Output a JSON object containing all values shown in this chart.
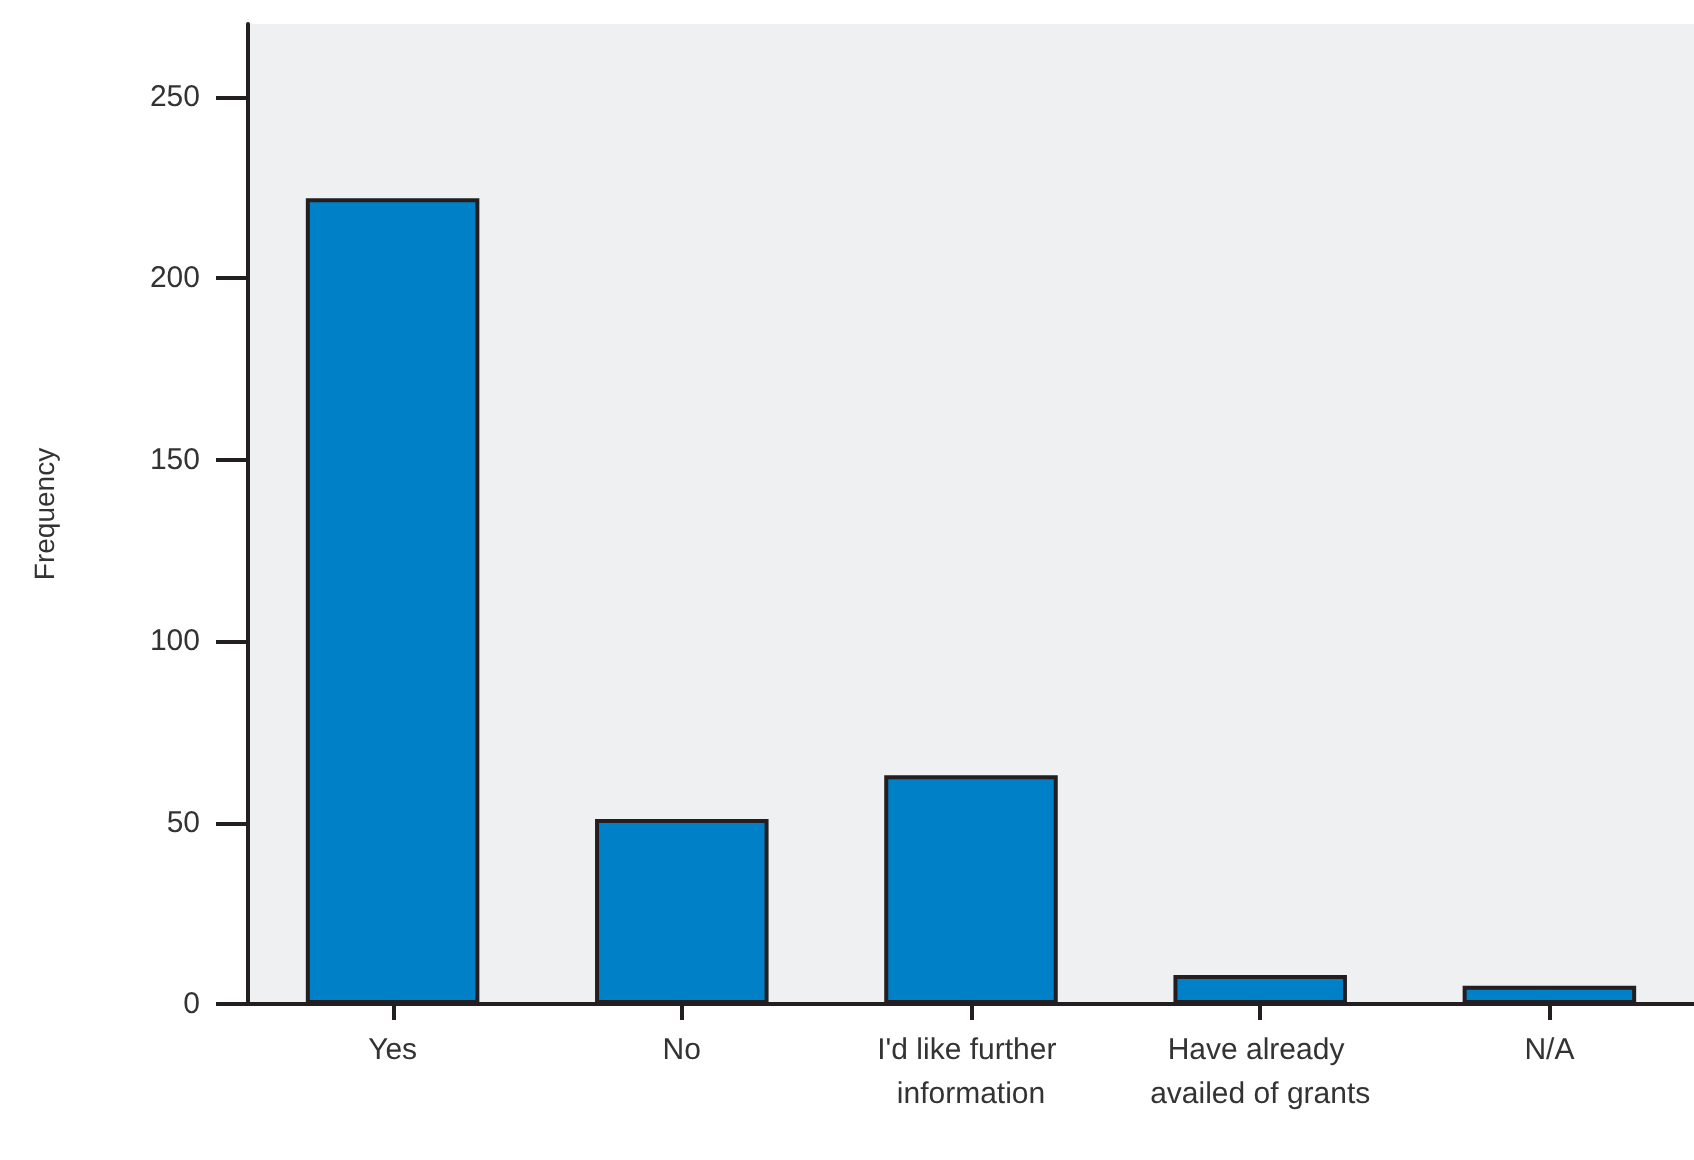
{
  "chart_data": {
    "type": "bar",
    "ylabel": "Frequency",
    "categories": [
      "Yes",
      "No",
      "I'd like further information",
      "Have already availed of grants",
      "N/A"
    ],
    "values": [
      222,
      51,
      63,
      8,
      5
    ],
    "color": "#0080c6",
    "ylim": [
      0,
      270
    ],
    "yticks": [
      0,
      50,
      100,
      150,
      200,
      250
    ],
    "grid": false
  }
}
